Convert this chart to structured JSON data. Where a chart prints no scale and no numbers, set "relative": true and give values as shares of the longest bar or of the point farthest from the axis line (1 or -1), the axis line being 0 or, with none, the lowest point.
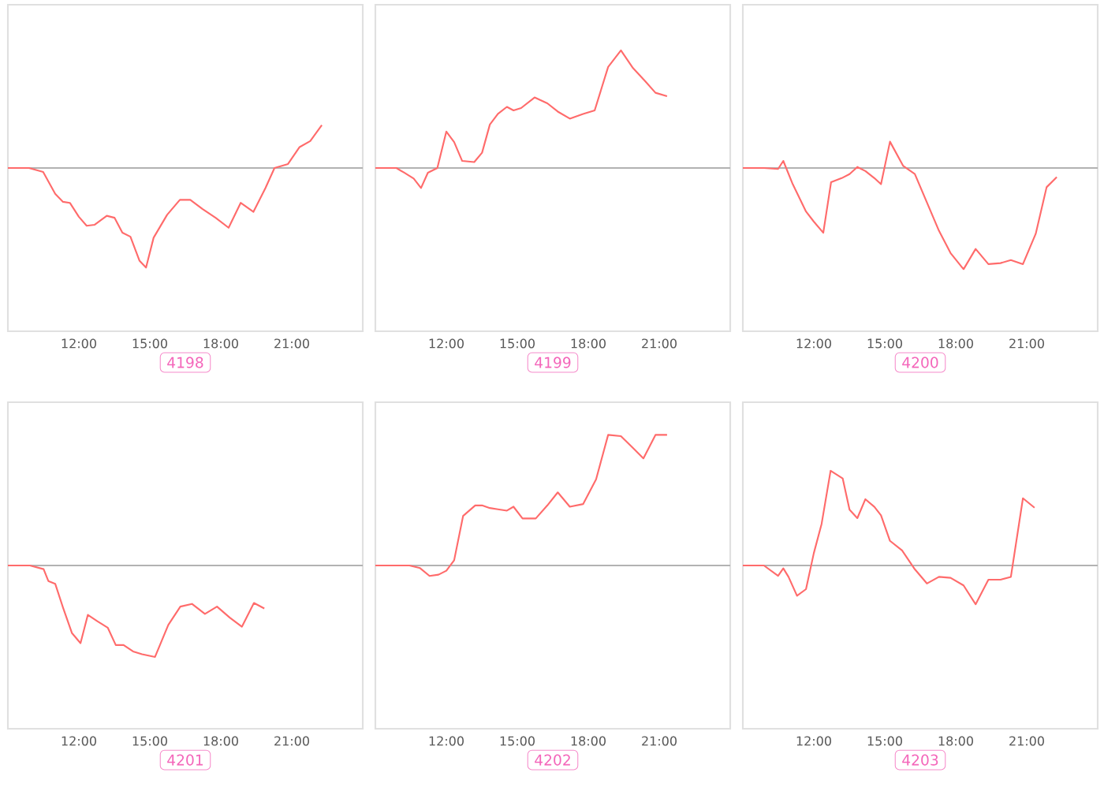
{
  "chart_data": [
    {
      "type": "line",
      "title": "4198",
      "color": "#ff6b6b",
      "relative": true,
      "xlim": [
        9,
        24
      ],
      "xticks": [
        {
          "value": 12,
          "label": "12:00"
        },
        {
          "value": 15,
          "label": "15:00"
        },
        {
          "value": 18,
          "label": "18:00"
        },
        {
          "value": 21,
          "label": "21:00"
        }
      ],
      "x": [
        9.0,
        9.89,
        10.49,
        11.0,
        11.33,
        11.62,
        12.0,
        12.33,
        12.67,
        13.18,
        13.51,
        13.84,
        14.18,
        14.56,
        14.84,
        15.16,
        15.73,
        16.27,
        16.71,
        17.22,
        17.78,
        18.33,
        18.84,
        19.38,
        19.89,
        20.27,
        20.84,
        21.33,
        21.78,
        22.27
      ],
      "values": [
        0,
        0,
        -0.04,
        -0.26,
        -0.34,
        -0.35,
        -0.49,
        -0.58,
        -0.57,
        -0.48,
        -0.5,
        -0.65,
        -0.69,
        -0.93,
        -1,
        -0.7,
        -0.47,
        -0.32,
        -0.32,
        -0.41,
        -0.5,
        -0.6,
        -0.35,
        -0.44,
        -0.2,
        0,
        0.04,
        0.21,
        0.27,
        0.43
      ]
    },
    {
      "type": "line",
      "title": "4199",
      "color": "#ff6b6b",
      "relative": true,
      "xlim": [
        9,
        24
      ],
      "xticks": [
        {
          "value": 12,
          "label": "12:00"
        },
        {
          "value": 15,
          "label": "15:00"
        },
        {
          "value": 18,
          "label": "18:00"
        },
        {
          "value": 21,
          "label": "21:00"
        }
      ],
      "x": [
        9.0,
        9.89,
        10.22,
        10.62,
        10.93,
        11.22,
        11.62,
        12.0,
        12.33,
        12.67,
        13.18,
        13.51,
        13.84,
        14.18,
        14.56,
        14.84,
        15.16,
        15.73,
        16.27,
        16.71,
        17.22,
        17.78,
        18.27,
        18.84,
        19.38,
        19.89,
        20.4,
        20.84,
        21.33
      ],
      "values": [
        0,
        0,
        -0.04,
        -0.09,
        -0.17,
        -0.04,
        0,
        0.31,
        0.22,
        0.06,
        0.05,
        0.13,
        0.37,
        0.46,
        0.52,
        0.49,
        0.51,
        0.6,
        0.55,
        0.48,
        0.42,
        0.46,
        0.49,
        0.86,
        1,
        0.85,
        0.74,
        0.64,
        0.61
      ]
    },
    {
      "type": "line",
      "title": "4200",
      "color": "#ff6b6b",
      "relative": true,
      "xlim": [
        9,
        24
      ],
      "xticks": [
        {
          "value": 12,
          "label": "12:00"
        },
        {
          "value": 15,
          "label": "15:00"
        },
        {
          "value": 18,
          "label": "18:00"
        },
        {
          "value": 21,
          "label": "21:00"
        }
      ],
      "x": [
        9.0,
        9.89,
        10.49,
        10.71,
        11.11,
        11.67,
        12.0,
        12.4,
        12.73,
        13.18,
        13.51,
        13.84,
        14.18,
        14.56,
        14.84,
        15.22,
        15.78,
        16.27,
        16.78,
        17.29,
        17.78,
        18.33,
        18.84,
        19.38,
        19.89,
        20.33,
        20.84,
        21.38,
        21.84,
        22.27
      ],
      "values": [
        0,
        0,
        -0.01,
        0.07,
        -0.16,
        -0.43,
        -0.53,
        -0.64,
        -0.14,
        -0.1,
        -0.06,
        0.01,
        -0.03,
        -0.1,
        -0.16,
        0.26,
        0.02,
        -0.06,
        -0.34,
        -0.62,
        -0.84,
        -1,
        -0.8,
        -0.95,
        -0.94,
        -0.91,
        -0.95,
        -0.65,
        -0.19,
        -0.09
      ]
    },
    {
      "type": "line",
      "title": "4201",
      "color": "#ff6b6b",
      "relative": true,
      "xlim": [
        9,
        24
      ],
      "xticks": [
        {
          "value": 12,
          "label": "12:00"
        },
        {
          "value": 15,
          "label": "15:00"
        },
        {
          "value": 18,
          "label": "18:00"
        },
        {
          "value": 21,
          "label": "21:00"
        }
      ],
      "x": [
        9.0,
        9.93,
        10.51,
        10.71,
        11.0,
        11.33,
        11.71,
        12.07,
        12.38,
        12.78,
        13.22,
        13.56,
        13.89,
        14.29,
        14.67,
        15.22,
        15.78,
        16.29,
        16.78,
        17.33,
        17.84,
        18.38,
        18.89,
        19.4,
        19.84
      ],
      "values": [
        0,
        0,
        -0.04,
        -0.17,
        -0.2,
        -0.46,
        -0.74,
        -0.85,
        -0.54,
        -0.61,
        -0.68,
        -0.87,
        -0.87,
        -0.94,
        -0.97,
        -1,
        -0.65,
        -0.45,
        -0.42,
        -0.53,
        -0.45,
        -0.57,
        -0.67,
        -0.41,
        -0.47
      ]
    },
    {
      "type": "line",
      "title": "4202",
      "color": "#ff6b6b",
      "relative": true,
      "xlim": [
        9,
        24
      ],
      "xticks": [
        {
          "value": 12,
          "label": "12:00"
        },
        {
          "value": 15,
          "label": "15:00"
        },
        {
          "value": 18,
          "label": "18:00"
        },
        {
          "value": 21,
          "label": "21:00"
        }
      ],
      "x": [
        9.0,
        10.44,
        10.89,
        11.29,
        11.67,
        12.0,
        12.33,
        12.71,
        13.22,
        13.51,
        13.84,
        14.18,
        14.56,
        14.84,
        15.22,
        15.78,
        16.27,
        16.71,
        17.22,
        17.78,
        18.33,
        18.84,
        19.38,
        19.89,
        20.33,
        20.84,
        21.33
      ],
      "values": [
        0,
        0,
        -0.02,
        -0.08,
        -0.07,
        -0.04,
        0.04,
        0.38,
        0.46,
        0.46,
        0.44,
        0.43,
        0.42,
        0.45,
        0.36,
        0.36,
        0.46,
        0.56,
        0.45,
        0.47,
        0.66,
        1,
        0.99,
        0.9,
        0.82,
        1,
        1
      ]
    },
    {
      "type": "line",
      "title": "4203",
      "color": "#ff6b6b",
      "relative": true,
      "xlim": [
        9,
        24
      ],
      "xticks": [
        {
          "value": 12,
          "label": "12:00"
        },
        {
          "value": 15,
          "label": "15:00"
        },
        {
          "value": 18,
          "label": "18:00"
        },
        {
          "value": 21,
          "label": "21:00"
        }
      ],
      "x": [
        9.0,
        9.89,
        10.49,
        10.71,
        10.93,
        11.29,
        11.67,
        12.0,
        12.33,
        12.71,
        13.22,
        13.51,
        13.84,
        14.18,
        14.56,
        14.84,
        15.22,
        15.73,
        16.27,
        16.78,
        17.29,
        17.78,
        18.33,
        18.84,
        19.38,
        19.89,
        20.33,
        20.84,
        21.33
      ],
      "values": [
        0,
        0,
        -0.11,
        -0.03,
        -0.12,
        -0.32,
        -0.25,
        0.13,
        0.44,
        1,
        0.92,
        0.59,
        0.5,
        0.7,
        0.62,
        0.53,
        0.26,
        0.16,
        -0.04,
        -0.19,
        -0.12,
        -0.13,
        -0.21,
        -0.41,
        -0.15,
        -0.15,
        -0.12,
        0.71,
        0.61
      ]
    }
  ]
}
